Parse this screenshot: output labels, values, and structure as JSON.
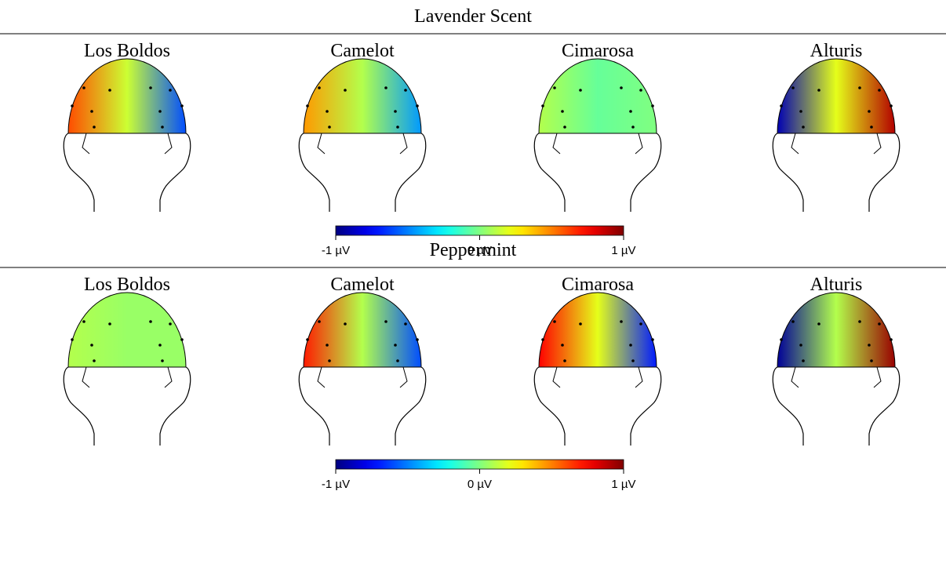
{
  "panels": [
    {
      "title": "Lavender Scent",
      "maps": [
        {
          "label": "Los Boldos",
          "values": [
            0.6,
            0.15,
            -0.6
          ]
        },
        {
          "label": "Camelot",
          "values": [
            0.45,
            0.1,
            -0.45
          ]
        },
        {
          "label": "Cimarosa",
          "values": [
            0.1,
            -0.05,
            0.0
          ]
        },
        {
          "label": "Alturis",
          "values": [
            -0.9,
            0.2,
            0.9
          ]
        }
      ],
      "colorbar": {
        "lim": [
          -1,
          1
        ],
        "ticks": [
          {
            "value": -1,
            "label": "-1 µV"
          },
          {
            "value": 0,
            "label": "0 µV"
          },
          {
            "value": 1,
            "label": "1 µV"
          }
        ]
      }
    },
    {
      "title": "Peppermint",
      "maps": [
        {
          "label": "Los Boldos",
          "values": [
            0.1,
            0.05,
            0.05
          ]
        },
        {
          "label": "Camelot",
          "values": [
            0.7,
            0.1,
            -0.6
          ]
        },
        {
          "label": "Cimarosa",
          "values": [
            0.75,
            0.2,
            -0.7
          ]
        },
        {
          "label": "Alturis",
          "values": [
            -0.95,
            0.1,
            0.95
          ]
        }
      ],
      "colorbar": {
        "lim": [
          -1,
          1
        ],
        "ticks": [
          {
            "value": -1,
            "label": "-1 µV"
          },
          {
            "value": 0,
            "label": "0 µV"
          },
          {
            "value": 1,
            "label": "1 µV"
          }
        ]
      }
    }
  ]
}
